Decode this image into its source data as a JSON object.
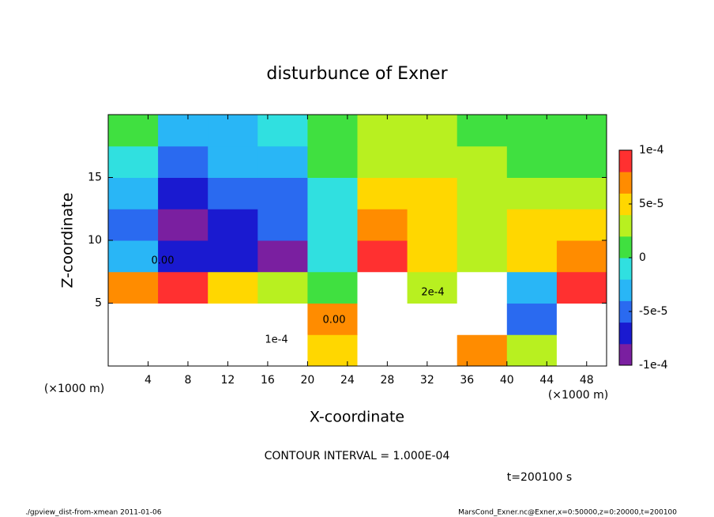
{
  "chart_data": {
    "type": "contourf",
    "title": "disturbunce of Exner",
    "x_label": "X-coordinate",
    "y_label": "Z-coordinate",
    "x_unit": "(×1000 m)",
    "contour_interval": "CONTOUR INTERVAL = 1.000E-04",
    "time_label": "t=200100 s",
    "footer_left": "./gpview_dist-from-xmean  2011-01-06",
    "footer_right": "MarsCond_Exner.nc@Exner,x=0:50000,z=0:20000,t=200100",
    "contour_labels": [
      "0.00",
      "1e-4",
      "2e-4",
      "0.00"
    ],
    "xlim": [
      0,
      50
    ],
    "xticks": [
      4,
      8,
      12,
      16,
      20,
      24,
      28,
      32,
      36,
      40,
      44,
      48
    ],
    "ylim": [
      0,
      20
    ],
    "yticks": [
      5,
      10,
      15
    ],
    "x": [
      2.5,
      7.5,
      12.5,
      17.5,
      22.5,
      27.5,
      32.5,
      37.5,
      42.5,
      47.5
    ],
    "y": [
      1.25,
      3.75,
      6.25,
      8.75,
      11.25,
      13.75,
      16.25,
      18.75
    ],
    "z": [
      [
        0.00012,
        0.00012,
        0.00012,
        0.00012,
        5e-05,
        0.00012,
        0.00012,
        6e-05,
        3e-05,
        0.00012
      ],
      [
        0.00012,
        0.00012,
        0.00012,
        0.00012,
        6e-05,
        0.00012,
        0.00012,
        0.00012,
        -5e-05,
        0.00012
      ],
      [
        6e-05,
        8e-05,
        5e-05,
        3e-05,
        1e-05,
        0.00012,
        2e-05,
        0.00012,
        -3e-05,
        8e-05
      ],
      [
        -3e-05,
        -7e-05,
        -7e-05,
        -8e-05,
        -2e-05,
        9e-05,
        5e-05,
        2e-05,
        4e-05,
        6e-05
      ],
      [
        -6e-05,
        -8e-05,
        -7e-05,
        -6e-05,
        -2e-05,
        7e-05,
        5e-05,
        2e-05,
        4e-05,
        4e-05
      ],
      [
        -4e-05,
        -7e-05,
        -6e-05,
        -5e-05,
        -1e-05,
        5e-05,
        4e-05,
        2e-05,
        2e-05,
        3e-05
      ],
      [
        -1e-05,
        -5e-05,
        -4e-05,
        -3e-05,
        0,
        3e-05,
        3e-05,
        2e-05,
        0,
        1e-05
      ],
      [
        0,
        -3e-05,
        -3e-05,
        -2e-05,
        0,
        2e-05,
        2e-05,
        1e-05,
        0,
        5e-06
      ]
    ],
    "clim": [
      -0.0001,
      0.0001
    ],
    "colormap": [
      "#7a1fa0",
      "#1a1ad0",
      "#2a6af0",
      "#29b6f6",
      "#30e0e0",
      "#40e040",
      "#b8f020",
      "#ffd700",
      "#ff8c00",
      "#ff3030"
    ],
    "above_color": "#ffffff",
    "cticks": [
      {
        "value": -0.0001,
        "label": "-1e-4"
      },
      {
        "value": -5e-05,
        "label": "-5e-5"
      },
      0,
      {
        "value": 5e-05,
        "label": "5e-5"
      },
      {
        "value": 0.0001,
        "label": "1e-4"
      }
    ]
  }
}
